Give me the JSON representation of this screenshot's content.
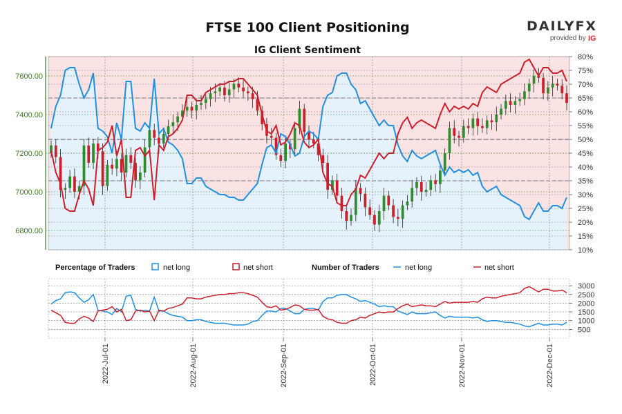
{
  "title": "FTSE 100 Client Positioning",
  "subtitle": "IG Client Sentiment",
  "logo": {
    "main": "DAILYFX",
    "sub": "provided by",
    "ig": "IG"
  },
  "colors": {
    "long": "#1f8fe0",
    "short": "#cc1f2b",
    "bull_candle": "#2e8b2e",
    "bear_candle": "#cc1f2b",
    "pane_long_bg": "#e6f2fb",
    "pane_short_bg": "#fbe3e4",
    "axis_green": "#3d7a1a"
  },
  "legend": {
    "pct_title": "Percentage of Traders",
    "pct_long": "net long",
    "pct_short": "net short",
    "num_title": "Number of Traders",
    "num_long": "net long",
    "num_short": "net short"
  },
  "chart_data": [
    {
      "type": "candlestick+area",
      "title": "FTSE 100 Client Positioning",
      "subtitle": "IG Client Sentiment",
      "price_axis": {
        "ylim": [
          6700,
          7700
        ],
        "ticks": [
          "6800.00",
          "7000.00",
          "7200.00",
          "7400.00",
          "7600.00"
        ]
      },
      "pct_axis": {
        "ylim": [
          10,
          80
        ],
        "ticks": [
          "10%",
          "15%",
          "20%",
          "25%",
          "30%",
          "35%",
          "40%",
          "45%",
          "50%",
          "55%",
          "60%",
          "65%",
          "70%",
          "75%",
          "80%"
        ]
      },
      "x_ticks": [
        "2022-Jul-01",
        "2022-Aug-01",
        "2022-Sep-01",
        "2022-Oct-01",
        "2022-Nov-01",
        "2022-Dec-01"
      ],
      "close": [
        7240,
        7180,
        7010,
        7020,
        7080,
        7000,
        7030,
        7240,
        7150,
        7250,
        7210,
        7030,
        7140,
        7120,
        7170,
        7100,
        7190,
        7150,
        7060,
        7100,
        7230,
        7320,
        7280,
        7250,
        7300,
        7340,
        7360,
        7390,
        7420,
        7440,
        7420,
        7450,
        7460,
        7480,
        7510,
        7520,
        7540,
        7500,
        7530,
        7560,
        7540,
        7520,
        7510,
        7480,
        7420,
        7350,
        7290,
        7280,
        7190,
        7160,
        7250,
        7220,
        7330,
        7430,
        7310,
        7270,
        7250,
        7190,
        7150,
        7010,
        7060,
        6980,
        6900,
        6850,
        6880,
        7020,
        6990,
        6920,
        6880,
        6830,
        6900,
        6980,
        6930,
        6870,
        6860,
        6930,
        6950,
        7020,
        7050,
        7000,
        7010,
        7060,
        7040,
        7110,
        7200,
        7330,
        7290,
        7280,
        7340,
        7330,
        7380,
        7340,
        7330,
        7370,
        7360,
        7400,
        7430,
        7470,
        7450,
        7470,
        7480,
        7520,
        7560,
        7600,
        7590,
        7510,
        7540,
        7560,
        7550,
        7510,
        7460
      ],
      "series": [
        {
          "name": "net long",
          "values": [
            54,
            62,
            66,
            75,
            76,
            76,
            70,
            65,
            68,
            74,
            54,
            53,
            51,
            45,
            56,
            50,
            71,
            71,
            54,
            53,
            56,
            54,
            72,
            52,
            54,
            49,
            48,
            46,
            43,
            34,
            34,
            36,
            36,
            33,
            32,
            31,
            30,
            30,
            29,
            29,
            28,
            28,
            30,
            32,
            34,
            41,
            47,
            48,
            45,
            52,
            51,
            48,
            44,
            45,
            51,
            53,
            52,
            50,
            62,
            66,
            67,
            73,
            74,
            74,
            70,
            68,
            63,
            64,
            61,
            58,
            55,
            57,
            55,
            55,
            48,
            44,
            42,
            46,
            44,
            43,
            44,
            45,
            46,
            41,
            37,
            40,
            38,
            39,
            38,
            39,
            37,
            38,
            33,
            31,
            32,
            33,
            30,
            29,
            28,
            27,
            26,
            22,
            21,
            24,
            27,
            24,
            24,
            26,
            26,
            25,
            29
          ]
        },
        {
          "name": "net short",
          "values": [
            46,
            38,
            34,
            25,
            24,
            24,
            30,
            35,
            32,
            26,
            46,
            47,
            49,
            55,
            44,
            50,
            29,
            29,
            46,
            47,
            44,
            46,
            28,
            48,
            46,
            51,
            52,
            54,
            57,
            66,
            66,
            64,
            64,
            67,
            68,
            69,
            70,
            70,
            71,
            71,
            72,
            72,
            70,
            68,
            66,
            59,
            53,
            52,
            55,
            48,
            49,
            52,
            56,
            55,
            49,
            47,
            48,
            50,
            38,
            34,
            33,
            27,
            26,
            26,
            30,
            32,
            37,
            36,
            39,
            42,
            45,
            43,
            45,
            45,
            52,
            56,
            58,
            54,
            56,
            57,
            56,
            55,
            54,
            59,
            63,
            60,
            62,
            61,
            62,
            61,
            63,
            62,
            67,
            69,
            68,
            67,
            70,
            71,
            72,
            73,
            74,
            78,
            79,
            76,
            73,
            76,
            76,
            74,
            74,
            75,
            71
          ]
        }
      ]
    },
    {
      "type": "line",
      "xlabel": "",
      "ylabel": "",
      "y_ticks": [
        "500",
        "1000",
        "1500",
        "2000",
        "2500",
        "3000"
      ],
      "ylim": [
        0,
        3400
      ],
      "series": [
        {
          "name": "net long",
          "values": [
            1950,
            2150,
            2250,
            2600,
            2650,
            2600,
            2300,
            2050,
            2200,
            2500,
            1600,
            1550,
            1500,
            1350,
            1700,
            1500,
            2400,
            2450,
            1650,
            1550,
            1600,
            1550,
            2350,
            1550,
            1550,
            1400,
            1300,
            1250,
            1200,
            1000,
            1000,
            1050,
            1050,
            950,
            900,
            850,
            850,
            850,
            800,
            750,
            750,
            750,
            800,
            950,
            1000,
            1300,
            1550,
            1550,
            1500,
            1700,
            1700,
            1550,
            1400,
            1400,
            1650,
            1700,
            1700,
            1600,
            2100,
            2300,
            2300,
            2450,
            2500,
            2500,
            2350,
            2250,
            2100,
            2150,
            2050,
            1950,
            1800,
            1850,
            1800,
            1800,
            1550,
            1450,
            1350,
            1500,
            1400,
            1400,
            1400,
            1450,
            1500,
            1300,
            1150,
            1250,
            1200,
            1200,
            1200,
            1200,
            1150,
            1200,
            1050,
            950,
            1000,
            1000,
            950,
            900,
            900,
            850,
            800,
            700,
            650,
            750,
            850,
            750,
            750,
            800,
            800,
            750,
            900
          ]
        },
        {
          "name": "net short",
          "values": [
            1600,
            1450,
            1300,
            900,
            850,
            850,
            1100,
            1250,
            1150,
            950,
            1550,
            1600,
            1650,
            1800,
            1500,
            1650,
            1000,
            1050,
            1550,
            1600,
            1500,
            1550,
            1000,
            1600,
            1550,
            1700,
            1750,
            1850,
            1950,
            2300,
            2300,
            2250,
            2250,
            2350,
            2400,
            2450,
            2500,
            2500,
            2550,
            2550,
            2600,
            2600,
            2550,
            2450,
            2350,
            2050,
            1800,
            1750,
            1850,
            1600,
            1650,
            1750,
            1900,
            1850,
            1650,
            1600,
            1600,
            1650,
            1250,
            1100,
            1050,
            900,
            850,
            850,
            1000,
            1050,
            1200,
            1150,
            1300,
            1400,
            1500,
            1450,
            1500,
            1500,
            1700,
            1850,
            1950,
            1800,
            1850,
            1900,
            1850,
            1850,
            1800,
            1950,
            2100,
            2000,
            2050,
            2050,
            2050,
            2050,
            2100,
            2050,
            2250,
            2350,
            2300,
            2300,
            2400,
            2450,
            2500,
            2550,
            2600,
            2850,
            2950,
            2800,
            2650,
            2800,
            2800,
            2700,
            2700,
            2750,
            2600
          ]
        }
      ]
    }
  ]
}
